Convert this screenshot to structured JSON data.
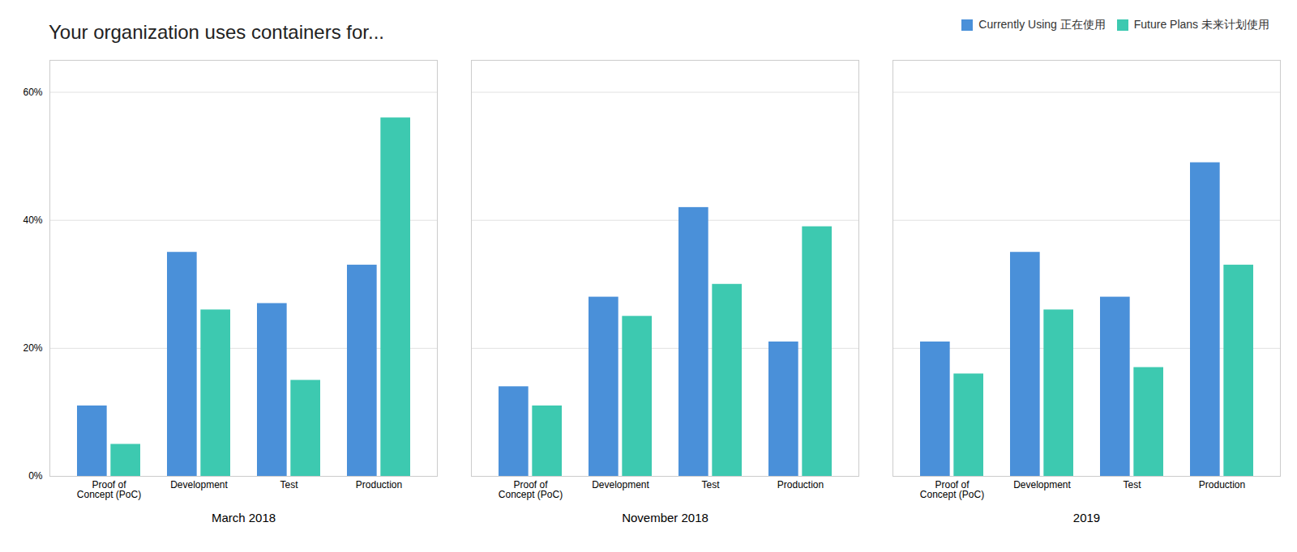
{
  "chart_data": {
    "type": "bar",
    "title": "Your organization uses containers for...",
    "groups": [
      "March 2018",
      "November 2018",
      "2019"
    ],
    "categories": [
      "Proof of\nConcept (PoC)",
      "Development",
      "Test",
      "Production"
    ],
    "series": [
      {
        "name": "Currently Using 正在使用",
        "color": "#4A90D9",
        "values": [
          [
            11,
            35,
            27,
            33
          ],
          [
            14,
            28,
            42,
            21
          ],
          [
            21,
            35,
            28,
            49
          ]
        ]
      },
      {
        "name": "Future Plans 未来计划使用",
        "color": "#3DC9B0",
        "values": [
          [
            5,
            26,
            15,
            56
          ],
          [
            11,
            25,
            30,
            39
          ],
          [
            16,
            26,
            17,
            33
          ]
        ]
      }
    ],
    "ylim": [
      0,
      65
    ],
    "yticks": [
      {
        "value": 0,
        "label": "0%"
      },
      {
        "value": 20,
        "label": "20%"
      },
      {
        "value": 40,
        "label": "40%"
      },
      {
        "value": 60,
        "label": "60%"
      }
    ],
    "grid": true,
    "legend": "top-right"
  }
}
